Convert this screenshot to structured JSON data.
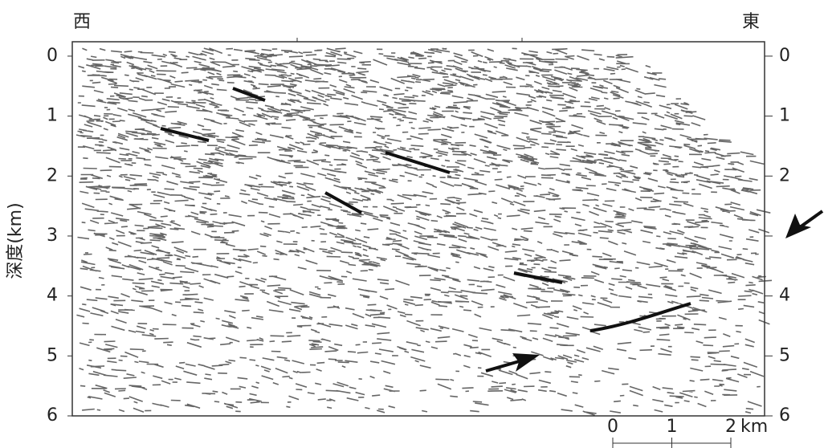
{
  "labels": {
    "west": "西",
    "east": "東"
  },
  "depth_axis": {
    "label": "深度(km)",
    "ylim": [
      -0.24,
      6
    ],
    "left_ticks": [
      0,
      1,
      2,
      3,
      4,
      5,
      6
    ],
    "right_ticks": [
      0,
      1,
      2,
      3,
      4,
      5,
      6
    ],
    "right_tick_labels": [
      0,
      1,
      2,
      null,
      4,
      5,
      6
    ]
  },
  "scale_bar": {
    "ticks": [
      0,
      1,
      2
    ],
    "unit": "km"
  }
}
